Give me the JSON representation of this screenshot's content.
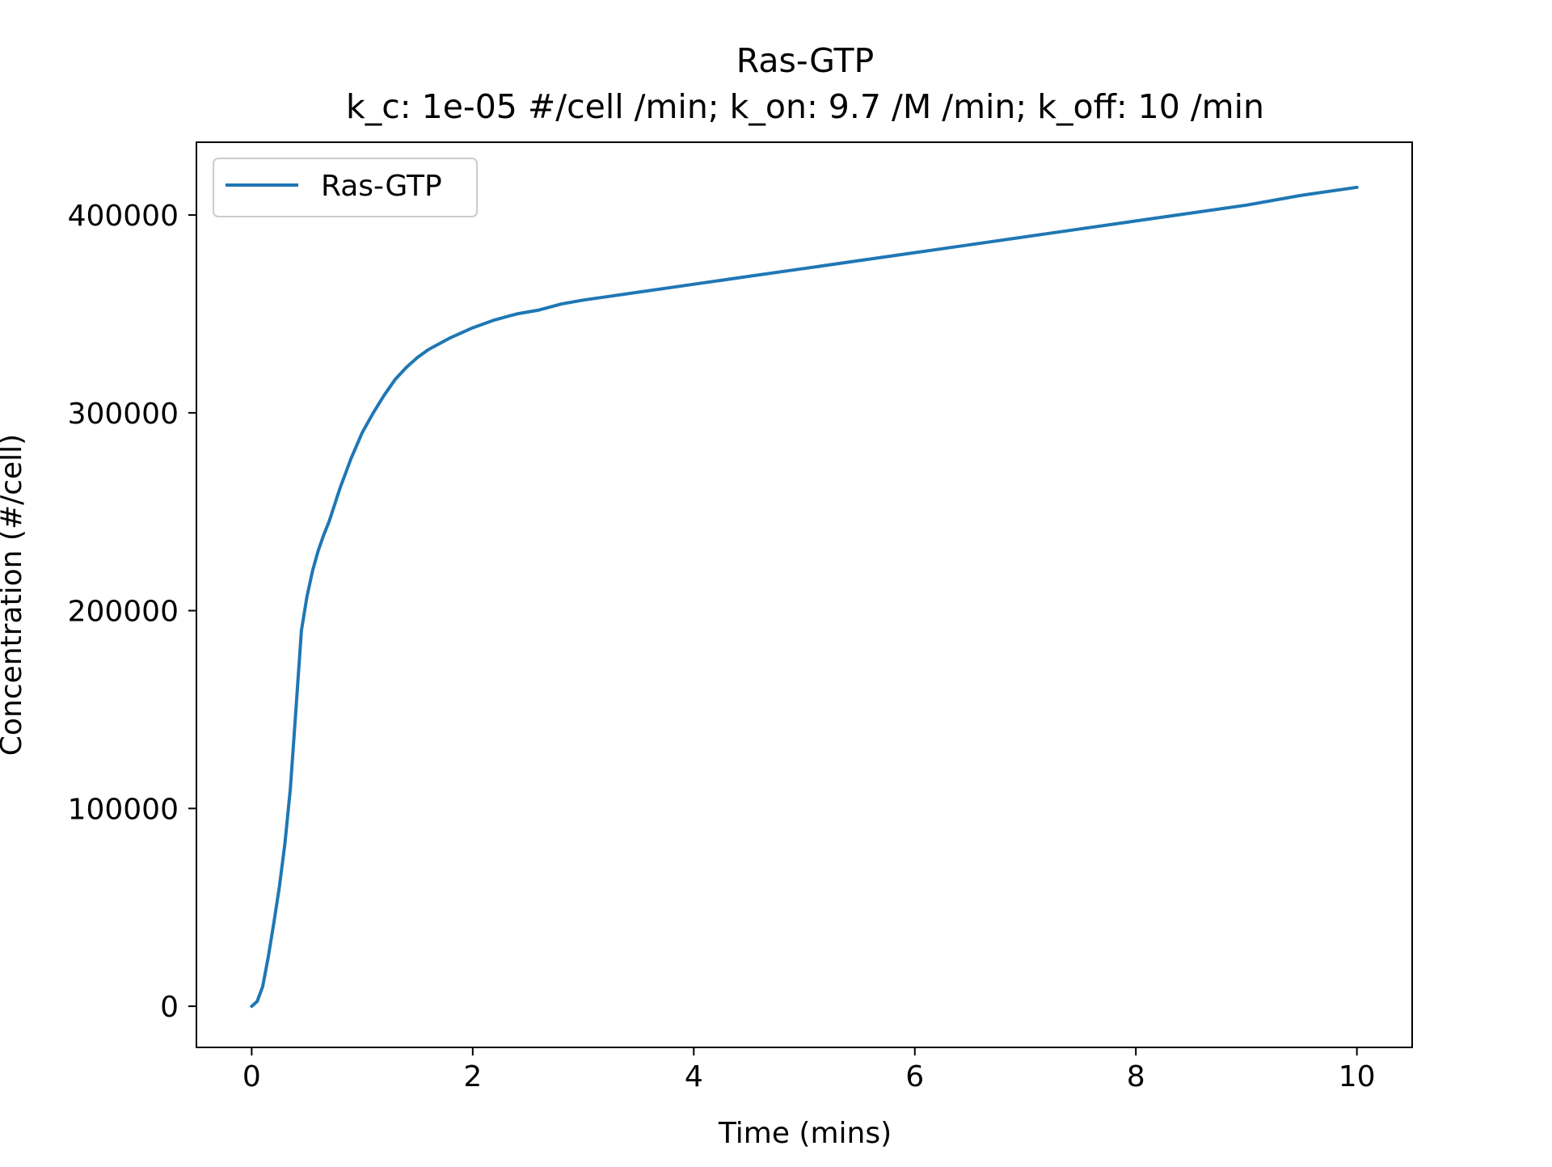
{
  "chart_data": {
    "type": "line",
    "title": "Ras-GTP",
    "subtitle": "k_c: 1e-05 #/cell /min; k_on: 9.7 /M /min; k_off: 10 /min",
    "xlabel": "Time (mins)",
    "ylabel": "Concentration (#/cell)",
    "xlim": [
      -0.5,
      10.5
    ],
    "ylim": [
      -20800,
      436800
    ],
    "xticks": [
      0,
      2,
      4,
      6,
      8,
      10
    ],
    "xtick_labels": [
      "0",
      "2",
      "4",
      "6",
      "8",
      "10"
    ],
    "yticks": [
      0,
      100000,
      200000,
      300000,
      400000
    ],
    "ytick_labels": [
      "0",
      "100000",
      "200000",
      "300000",
      "400000"
    ],
    "grid": false,
    "legend_position": "top-left",
    "series": [
      {
        "name": "Ras-GTP",
        "color": "#1f77b4",
        "x": [
          0,
          0.05,
          0.1,
          0.15,
          0.2,
          0.25,
          0.3,
          0.35,
          0.4,
          0.45,
          0.5,
          0.55,
          0.6,
          0.65,
          0.7,
          0.8,
          0.9,
          1.0,
          1.1,
          1.2,
          1.3,
          1.4,
          1.5,
          1.6,
          1.8,
          2.0,
          2.2,
          2.4,
          2.6,
          2.8,
          3.0,
          3.5,
          4.0,
          4.5,
          5.0,
          5.5,
          6.0,
          6.5,
          7.0,
          7.5,
          8.0,
          8.5,
          9.0,
          9.5,
          10.0
        ],
        "y": [
          0,
          2500,
          10000,
          25000,
          42000,
          60000,
          82000,
          110000,
          150000,
          190000,
          207000,
          220000,
          230000,
          238000,
          245000,
          262000,
          277000,
          290000,
          300000,
          309000,
          317000,
          323000,
          328000,
          332000,
          338000,
          343000,
          347000,
          350000,
          352000,
          355000,
          357000,
          361000,
          365000,
          369000,
          373000,
          377000,
          381000,
          385000,
          389000,
          393000,
          397000,
          401000,
          405000,
          410000,
          414000
        ]
      }
    ]
  }
}
